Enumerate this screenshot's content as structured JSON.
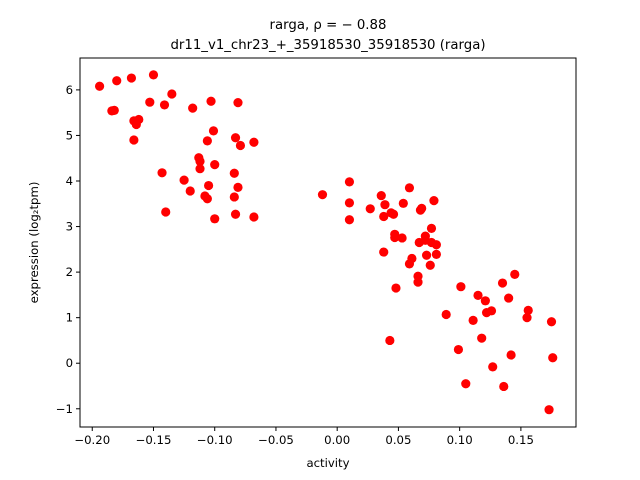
{
  "chart_data": {
    "type": "scatter",
    "title_line1": "rarga, ρ = − 0.88",
    "title_line2": "dr11_v1_chr23_+_35918530_35918530 (rarga)",
    "xlabel": "activity",
    "ylabel": "expression (log₂tpm)",
    "xlim": [
      -0.21,
      0.195
    ],
    "ylim": [
      -1.4,
      6.7
    ],
    "xticks": [
      -0.2,
      -0.15,
      -0.1,
      -0.05,
      0.0,
      0.05,
      0.1,
      0.15
    ],
    "xtick_labels": [
      "−0.20",
      "−0.15",
      "−0.10",
      "−0.05",
      "0.00",
      "0.05",
      "0.10",
      "0.15"
    ],
    "yticks": [
      -1,
      0,
      1,
      2,
      3,
      4,
      5,
      6
    ],
    "ytick_labels": [
      "−1",
      "0",
      "1",
      "2",
      "3",
      "4",
      "5",
      "6"
    ],
    "marker_color": "#ff0000",
    "grid": false,
    "points": [
      {
        "x": -0.194,
        "y": 6.08
      },
      {
        "x": -0.184,
        "y": 5.54
      },
      {
        "x": -0.182,
        "y": 5.55
      },
      {
        "x": -0.18,
        "y": 6.2
      },
      {
        "x": -0.168,
        "y": 6.26
      },
      {
        "x": -0.166,
        "y": 5.32
      },
      {
        "x": -0.166,
        "y": 4.9
      },
      {
        "x": -0.164,
        "y": 5.24
      },
      {
        "x": -0.162,
        "y": 5.35
      },
      {
        "x": -0.153,
        "y": 5.73
      },
      {
        "x": -0.15,
        "y": 6.33
      },
      {
        "x": -0.143,
        "y": 4.18
      },
      {
        "x": -0.141,
        "y": 5.67
      },
      {
        "x": -0.14,
        "y": 3.32
      },
      {
        "x": -0.135,
        "y": 5.91
      },
      {
        "x": -0.125,
        "y": 4.02
      },
      {
        "x": -0.12,
        "y": 3.78
      },
      {
        "x": -0.118,
        "y": 5.6
      },
      {
        "x": -0.113,
        "y": 4.51
      },
      {
        "x": -0.112,
        "y": 4.43
      },
      {
        "x": -0.112,
        "y": 4.27
      },
      {
        "x": -0.108,
        "y": 3.67
      },
      {
        "x": -0.106,
        "y": 4.88
      },
      {
        "x": -0.106,
        "y": 3.61
      },
      {
        "x": -0.105,
        "y": 3.9
      },
      {
        "x": -0.103,
        "y": 5.75
      },
      {
        "x": -0.101,
        "y": 5.1
      },
      {
        "x": -0.1,
        "y": 4.36
      },
      {
        "x": -0.1,
        "y": 3.17
      },
      {
        "x": -0.084,
        "y": 4.17
      },
      {
        "x": -0.084,
        "y": 3.65
      },
      {
        "x": -0.083,
        "y": 4.95
      },
      {
        "x": -0.083,
        "y": 3.27
      },
      {
        "x": -0.081,
        "y": 5.72
      },
      {
        "x": -0.081,
        "y": 3.86
      },
      {
        "x": -0.079,
        "y": 4.78
      },
      {
        "x": -0.068,
        "y": 4.85
      },
      {
        "x": -0.068,
        "y": 3.21
      },
      {
        "x": -0.012,
        "y": 3.7
      },
      {
        "x": 0.01,
        "y": 3.15
      },
      {
        "x": 0.01,
        "y": 3.52
      },
      {
        "x": 0.01,
        "y": 3.98
      },
      {
        "x": 0.027,
        "y": 3.39
      },
      {
        "x": 0.036,
        "y": 3.68
      },
      {
        "x": 0.038,
        "y": 2.44
      },
      {
        "x": 0.038,
        "y": 3.22
      },
      {
        "x": 0.039,
        "y": 3.48
      },
      {
        "x": 0.043,
        "y": 0.5
      },
      {
        "x": 0.044,
        "y": 3.3
      },
      {
        "x": 0.046,
        "y": 3.27
      },
      {
        "x": 0.047,
        "y": 2.83
      },
      {
        "x": 0.047,
        "y": 2.76
      },
      {
        "x": 0.048,
        "y": 1.65
      },
      {
        "x": 0.053,
        "y": 2.75
      },
      {
        "x": 0.054,
        "y": 3.51
      },
      {
        "x": 0.059,
        "y": 3.85
      },
      {
        "x": 0.059,
        "y": 2.18
      },
      {
        "x": 0.061,
        "y": 2.3
      },
      {
        "x": 0.066,
        "y": 1.91
      },
      {
        "x": 0.066,
        "y": 1.78
      },
      {
        "x": 0.067,
        "y": 2.65
      },
      {
        "x": 0.068,
        "y": 3.36
      },
      {
        "x": 0.069,
        "y": 3.4
      },
      {
        "x": 0.072,
        "y": 2.7
      },
      {
        "x": 0.072,
        "y": 2.79
      },
      {
        "x": 0.073,
        "y": 2.37
      },
      {
        "x": 0.076,
        "y": 2.15
      },
      {
        "x": 0.077,
        "y": 2.65
      },
      {
        "x": 0.077,
        "y": 2.96
      },
      {
        "x": 0.079,
        "y": 3.57
      },
      {
        "x": 0.081,
        "y": 2.6
      },
      {
        "x": 0.081,
        "y": 2.39
      },
      {
        "x": 0.089,
        "y": 1.07
      },
      {
        "x": 0.099,
        "y": 0.3
      },
      {
        "x": 0.101,
        "y": 1.68
      },
      {
        "x": 0.105,
        "y": -0.45
      },
      {
        "x": 0.111,
        "y": 0.94
      },
      {
        "x": 0.115,
        "y": 1.49
      },
      {
        "x": 0.118,
        "y": 0.55
      },
      {
        "x": 0.121,
        "y": 1.37
      },
      {
        "x": 0.122,
        "y": 1.11
      },
      {
        "x": 0.126,
        "y": 1.15
      },
      {
        "x": 0.127,
        "y": -0.08
      },
      {
        "x": 0.135,
        "y": 1.76
      },
      {
        "x": 0.136,
        "y": -0.51
      },
      {
        "x": 0.14,
        "y": 1.43
      },
      {
        "x": 0.142,
        "y": 0.18
      },
      {
        "x": 0.145,
        "y": 1.95
      },
      {
        "x": 0.155,
        "y": 1.0
      },
      {
        "x": 0.156,
        "y": 1.16
      },
      {
        "x": 0.173,
        "y": -1.02
      },
      {
        "x": 0.175,
        "y": 0.91
      },
      {
        "x": 0.176,
        "y": 0.12
      }
    ]
  }
}
